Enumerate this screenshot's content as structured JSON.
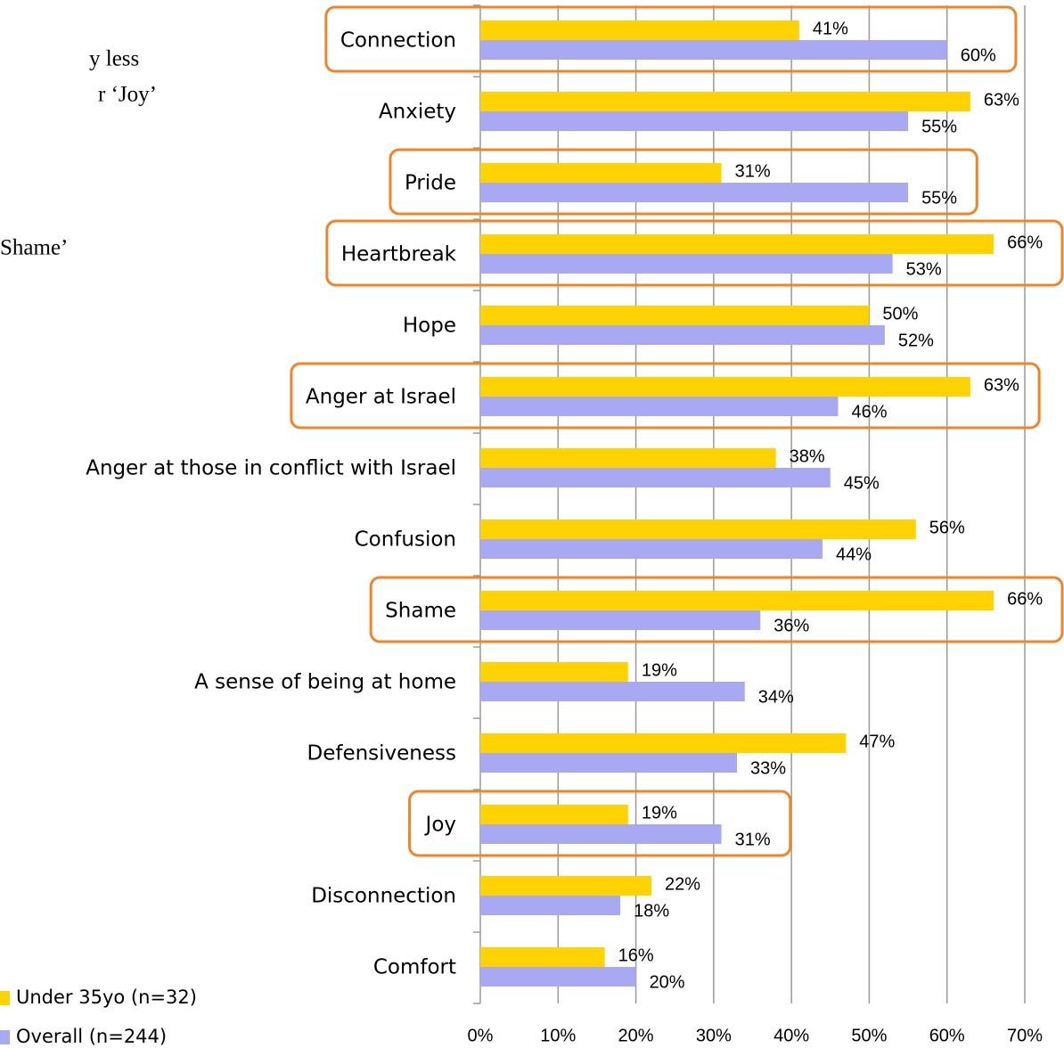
{
  "chart_data": {
    "type": "hbar",
    "side_text": [
      "y less",
      "r ‘Joy’",
      "Shame’"
    ],
    "categories": [
      "Connection",
      "Anxiety",
      "Pride",
      "Heartbreak",
      "Hope",
      "Anger at Israel",
      "Anger at those in conflict with Israel",
      "Confusion",
      "Shame",
      "A sense of being at home",
      "Defensiveness",
      "Joy",
      "Disconnection",
      "Comfort"
    ],
    "highlighted": [
      true,
      false,
      true,
      true,
      false,
      true,
      false,
      false,
      true,
      false,
      false,
      true,
      false,
      false
    ],
    "series": [
      {
        "name": "Under 35yo (n=32)",
        "color": "#ffd200",
        "values": [
          41,
          63,
          31,
          66,
          50,
          63,
          38,
          56,
          66,
          19,
          47,
          19,
          22,
          16
        ],
        "value_labels": [
          "41%",
          "63%",
          "31%",
          "66%",
          "50%",
          "63%",
          "38%",
          "56%",
          "66%",
          "19%",
          "47%",
          "19%",
          "22%",
          "16%"
        ]
      },
      {
        "name": "Overall (n=244)",
        "color": "#a9a9f3",
        "values": [
          60,
          55,
          55,
          53,
          52,
          46,
          45,
          44,
          36,
          34,
          33,
          31,
          18,
          20
        ],
        "value_labels": [
          "60%",
          "55%",
          "55%",
          "53%",
          "52%",
          "46%",
          "45%",
          "44%",
          "36%",
          "34%",
          "33%",
          "31%",
          "18%",
          "20%"
        ]
      }
    ],
    "xlim": [
      0,
      70
    ],
    "xticks": [
      {
        "value": 0,
        "label": "0%"
      },
      {
        "value": 10,
        "label": "10%"
      },
      {
        "value": 20,
        "label": "20%"
      },
      {
        "value": 30,
        "label": "30%"
      },
      {
        "value": 40,
        "label": "40%"
      },
      {
        "value": 50,
        "label": "50%"
      },
      {
        "value": 60,
        "label": "60%"
      },
      {
        "value": 70,
        "label": "70%"
      }
    ],
    "grid": true
  }
}
